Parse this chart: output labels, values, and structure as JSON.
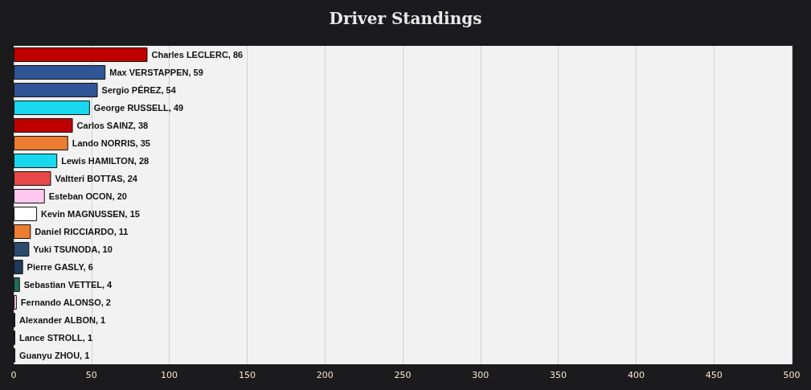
{
  "chart_data": {
    "type": "bar",
    "orientation": "horizontal",
    "title": "Driver Standings",
    "categories": [
      null,
      null,
      null,
      null,
      null,
      null,
      null,
      null,
      null,
      null,
      null,
      null,
      null,
      null,
      null,
      null,
      null,
      null
    ],
    "values": [
      86,
      59,
      54,
      49,
      38,
      35,
      28,
      24,
      20,
      15,
      11,
      10,
      6,
      4,
      2,
      1,
      1,
      1
    ],
    "value_labels": [
      "Charles LECLERC, 86",
      "Max VERSTAPPEN, 59",
      "Sergio PÉREZ, 54",
      "George RUSSELL, 49",
      "Carlos SAINZ, 38",
      "Lando NORRIS, 35",
      "Lewis HAMILTON, 28",
      "Valtteri BOTTAS, 24",
      "Esteban OCON, 20",
      "Kevin MAGNUSSEN, 15",
      "Daniel RICCIARDO, 11",
      "Yuki TSUNODA, 10",
      "Pierre GASLY, 6",
      "Sebastian VETTEL, 4",
      "Fernando ALONSO, 2",
      "Alexander ALBON, 1",
      "Lance STROLL, 1",
      "Guanyu ZHOU, 1"
    ],
    "colors": [
      "#c00000",
      "#2f5597",
      "#2f5597",
      "#18d8f0",
      "#c00000",
      "#ed7d31",
      "#18d8f0",
      "#e84848",
      "#ffc8f0",
      "#ffffff",
      "#ed7d31",
      "#2a4a70",
      "#1f3a5a",
      "#1e6e5a",
      "#ffc8f0",
      "#2050c0",
      "#1e6e5a",
      "#c00000"
    ],
    "xlim": [
      0,
      500
    ],
    "xticks": [
      0,
      50,
      100,
      150,
      200,
      250,
      300,
      350,
      400,
      450,
      500
    ],
    "grid": "x",
    "tick_labels": "x"
  }
}
